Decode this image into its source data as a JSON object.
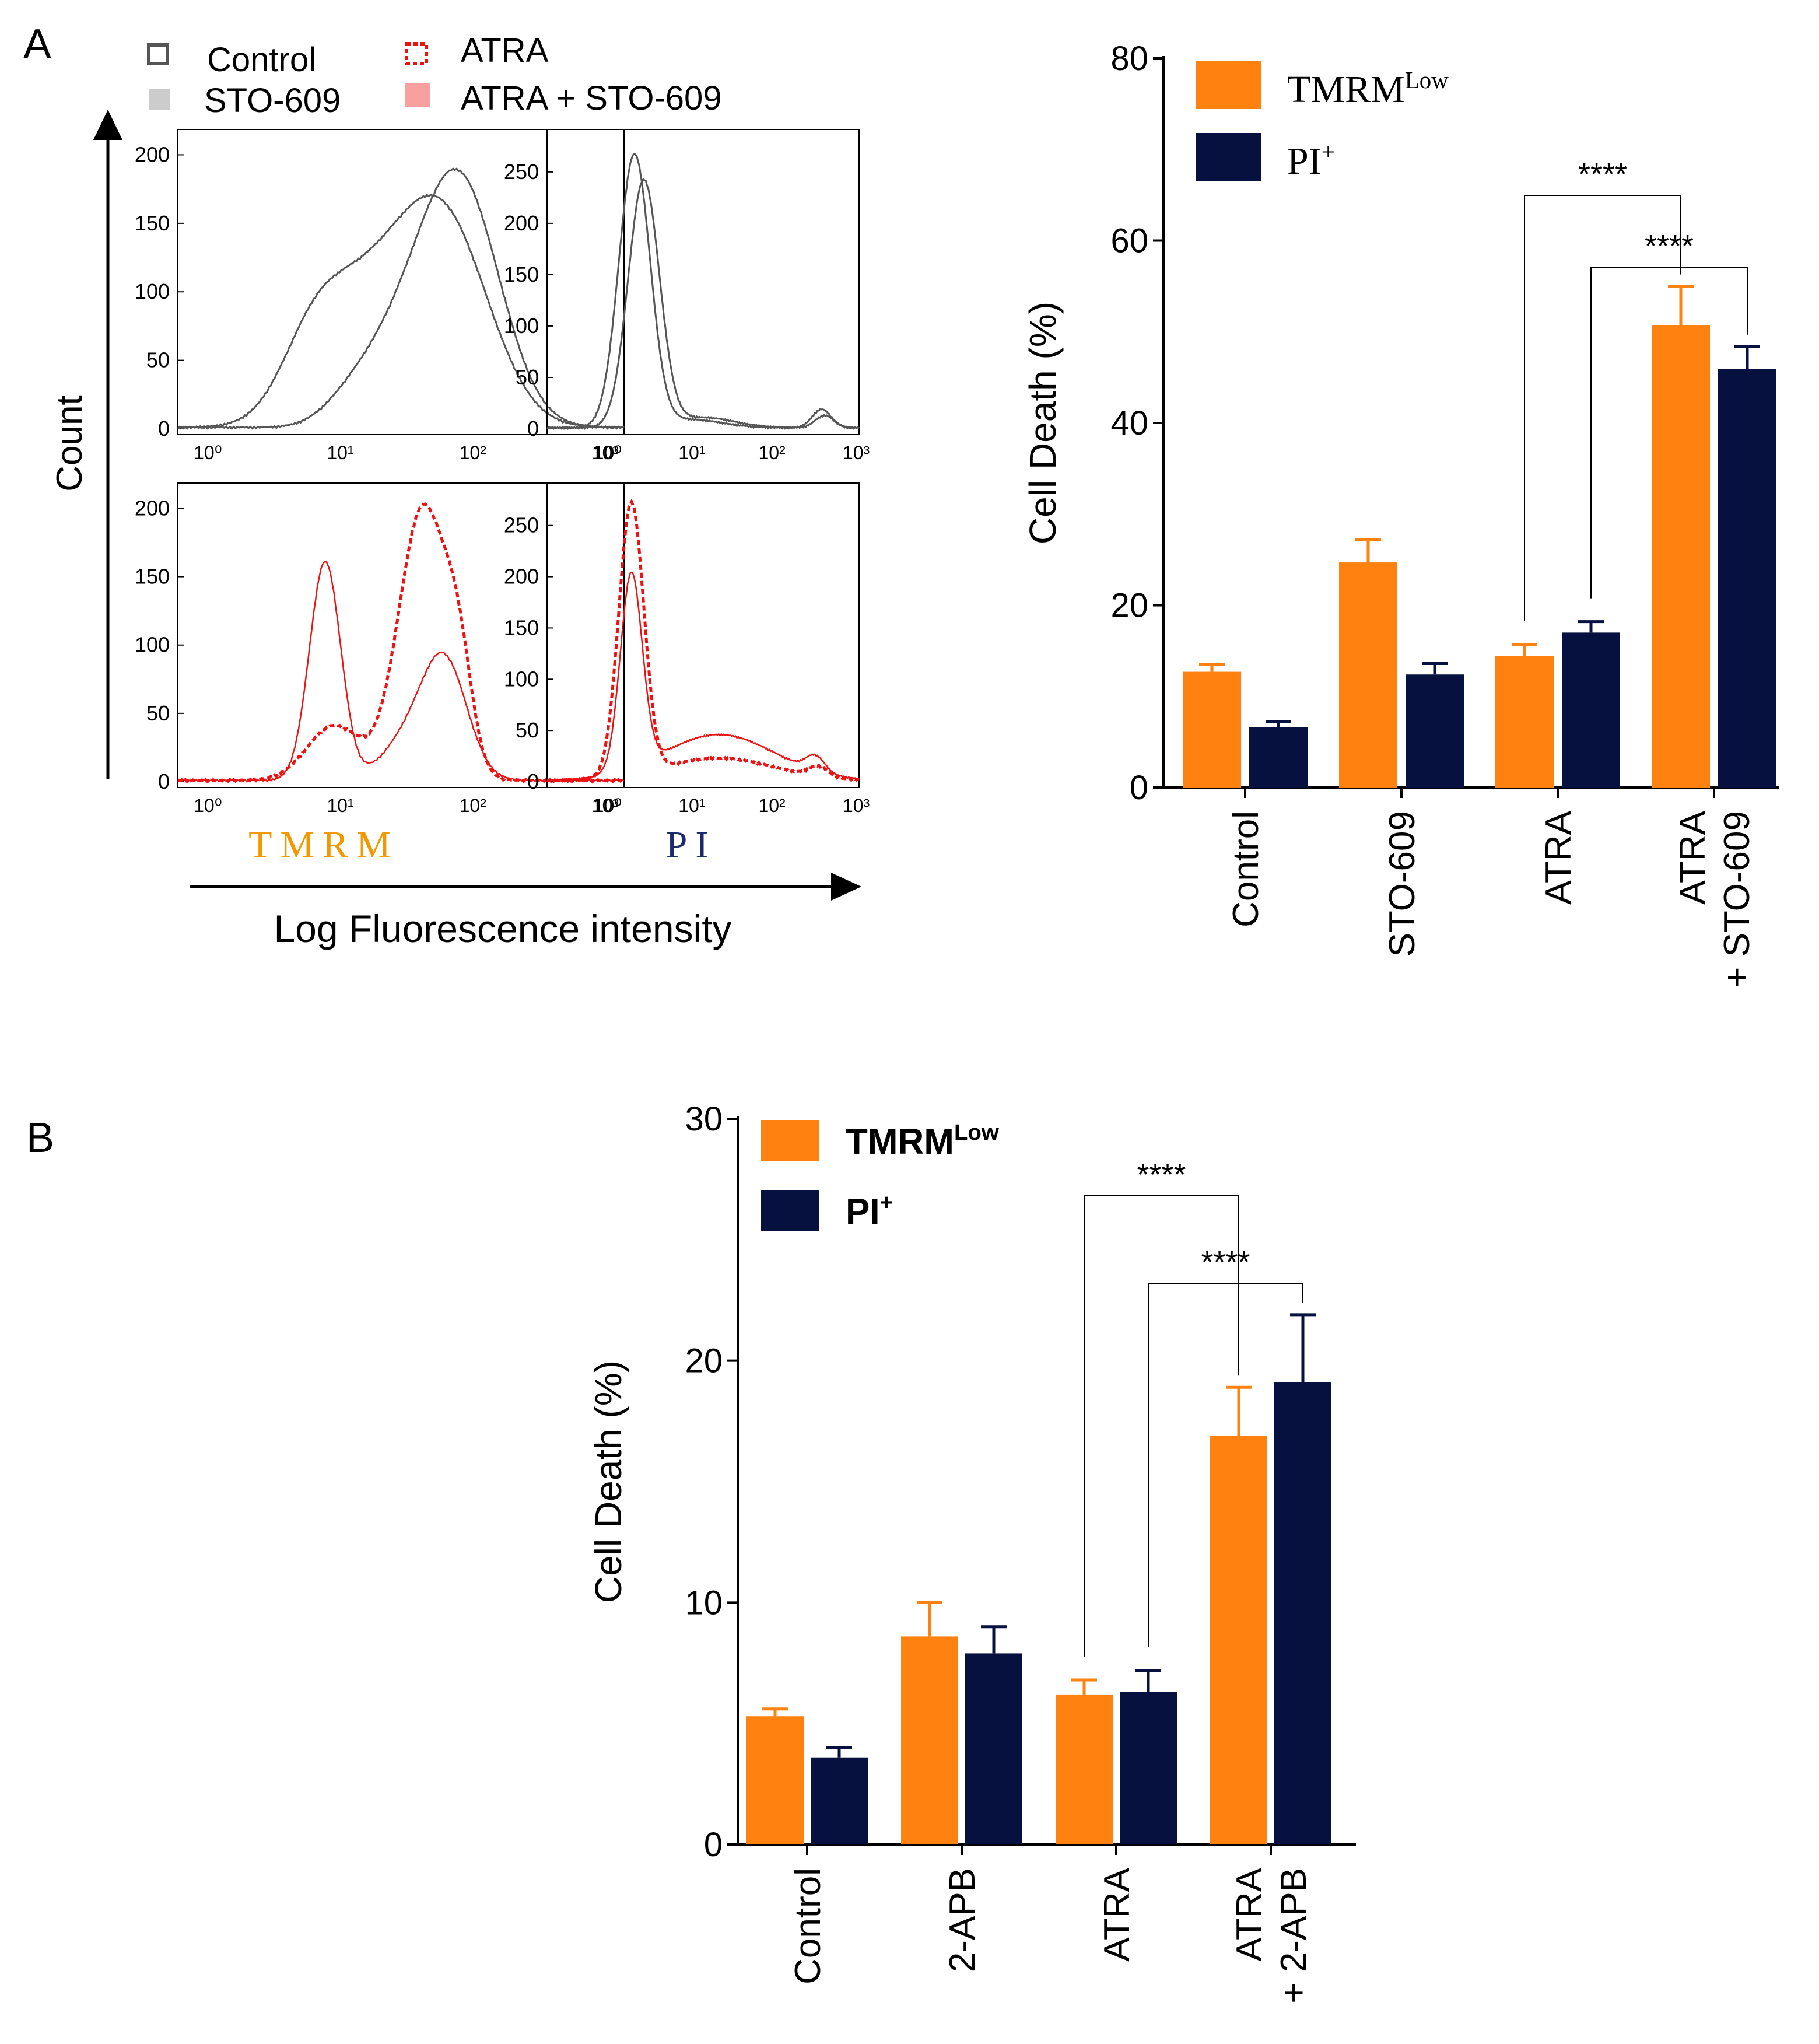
{
  "colors": {
    "tmrm": "#FF8210",
    "pi": "#06113F",
    "control_line": "#555555",
    "atra_line": "#EE1111",
    "sto_fill": "#CCCCCC",
    "atra_sto_fill": "#F8A0A0",
    "tmrm_text": "#F39800",
    "pi_text": "#1A2A6C"
  },
  "panel_a": {
    "label": "A",
    "legend": [
      "Control",
      "STO-609",
      "ATRA",
      "ATRA + STO-609"
    ],
    "y_axis_label": "Count",
    "x_axis_label": "Log Fluorescence intensity",
    "tmrm_label": "TMRM",
    "pi_label": "PI",
    "x_ticks": [
      "10⁰",
      "10¹",
      "10²",
      "10³"
    ],
    "hist_top_left_yticks": [
      "0",
      "50",
      "100",
      "150",
      "200"
    ],
    "hist_top_right_yticks": [
      "0",
      "50",
      "100",
      "150",
      "200",
      "250"
    ],
    "hist_bottom_left_yticks": [
      "0",
      "50",
      "100",
      "150",
      "200"
    ],
    "hist_bottom_right_yticks": [
      "0",
      "50",
      "100",
      "150",
      "200",
      "250"
    ]
  },
  "panel_b": {
    "label": "B"
  },
  "chart_data": [
    {
      "type": "bar",
      "panel": "A",
      "categories": [
        "Control",
        "STO-609",
        "ATRA",
        "ATRA + STO-609"
      ],
      "category_lines": [
        [
          "Control"
        ],
        [
          "STO-609"
        ],
        [
          "ATRA"
        ],
        [
          "ATRA",
          "+ STO-609"
        ]
      ],
      "ylabel": "Cell Death (%)",
      "ylim": [
        0,
        80
      ],
      "yticks": [
        0,
        20,
        40,
        60,
        80
      ],
      "legend": {
        "tmrm_base": "TMRM",
        "tmrm_sup": "Low",
        "pi_base": "PI",
        "pi_sup": "+"
      },
      "series": [
        {
          "name": "TMRM Low",
          "values": [
            12.7,
            24.7,
            14.4,
            50.7
          ],
          "errors": [
            0.8,
            2.5,
            1.3,
            4.3
          ]
        },
        {
          "name": "PI+",
          "values": [
            6.6,
            12.4,
            17.0,
            45.9
          ],
          "errors": [
            0.6,
            1.2,
            1.2,
            2.5
          ]
        }
      ],
      "significance": [
        {
          "label": "****",
          "from": [
            2,
            0
          ],
          "to": [
            3,
            0
          ]
        },
        {
          "label": "****",
          "from": [
            2,
            1
          ],
          "to": [
            3,
            1
          ]
        }
      ]
    },
    {
      "type": "bar",
      "panel": "B",
      "categories": [
        "Control",
        "2-APB",
        "ATRA",
        "ATRA + 2-APB"
      ],
      "category_lines": [
        [
          "Control"
        ],
        [
          "2-APB"
        ],
        [
          "ATRA"
        ],
        [
          "ATRA",
          "+ 2-APB"
        ]
      ],
      "ylabel": "Cell Death (%)",
      "ylim": [
        0,
        30
      ],
      "yticks": [
        0,
        10,
        20,
        30
      ],
      "legend": {
        "tmrm_base": "TMRM",
        "tmrm_sup": "Low",
        "pi_base": "PI",
        "pi_sup": "+"
      },
      "series": [
        {
          "name": "TMRM Low",
          "values": [
            5.3,
            8.6,
            6.2,
            16.9
          ],
          "errors": [
            0.3,
            1.4,
            0.6,
            2.0
          ]
        },
        {
          "name": "PI+",
          "values": [
            3.6,
            7.9,
            6.3,
            19.1
          ],
          "errors": [
            0.4,
            1.1,
            0.9,
            2.8
          ]
        }
      ],
      "significance": [
        {
          "label": "****",
          "from": [
            2,
            0
          ],
          "to": [
            3,
            0
          ]
        },
        {
          "label": "****",
          "from": [
            2,
            1
          ],
          "to": [
            3,
            1
          ]
        }
      ]
    }
  ]
}
